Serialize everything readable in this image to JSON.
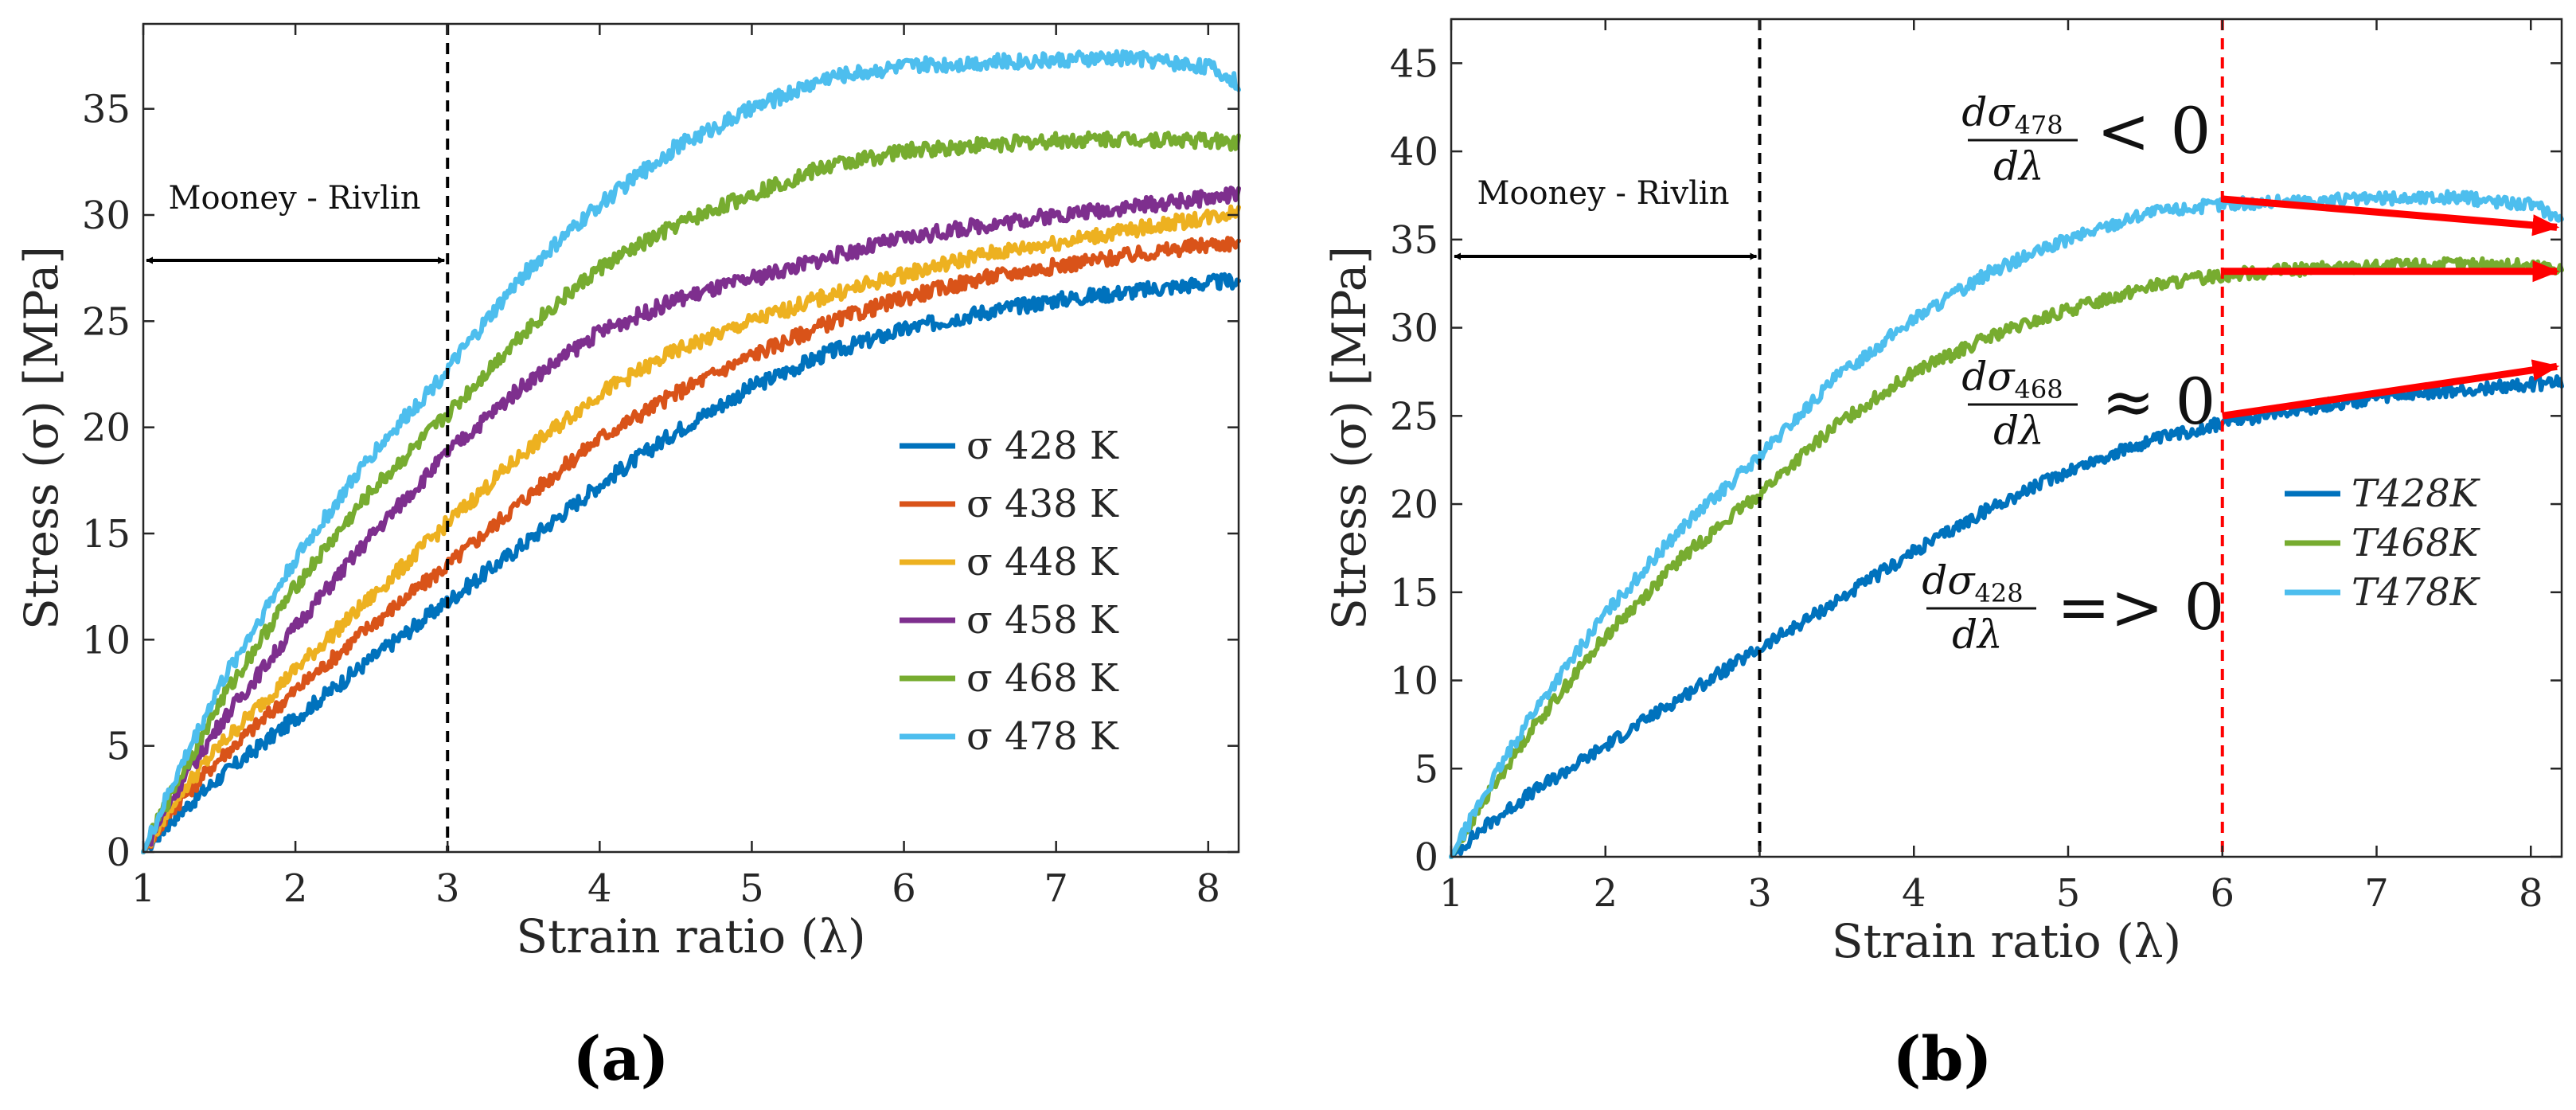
{
  "panels": {
    "a": {
      "caption": "(a)"
    },
    "b": {
      "caption": "(b)"
    }
  },
  "colors": {
    "T428": "#0072BD",
    "T438": "#D95319",
    "T448": "#EDB120",
    "T458": "#7E2F8E",
    "T468": "#77AC30",
    "T478": "#4DBEEE",
    "vline_black": "#000000",
    "vline_red": "#FF0000",
    "arrow_red": "#FF0000"
  },
  "annotations": {
    "a": {
      "region_label": "Mooney - Rivlin"
    },
    "b": {
      "region_label": "Mooney - Rivlin",
      "deriv_478": {
        "num": "dσ",
        "sub": "478",
        "den": "dλ",
        "rel": "< 0"
      },
      "deriv_468": {
        "num": "dσ",
        "sub": "468",
        "den": "dλ",
        "rel": "≈ 0"
      },
      "deriv_428": {
        "num": "dσ",
        "sub": "428",
        "den": "dλ",
        "rel": "=> 0"
      }
    }
  },
  "chart_data": [
    {
      "type": "line",
      "xlabel": "Strain ratio (λ)",
      "ylabel": "Stress (σ) [MPa]",
      "xlim": [
        1,
        8.2
      ],
      "ylim": [
        0,
        39
      ],
      "xticks": [
        "1",
        "2",
        "3",
        "4",
        "5",
        "6",
        "7",
        "8"
      ],
      "yticks": [
        "0",
        "5",
        "10",
        "15",
        "20",
        "25",
        "30",
        "35"
      ],
      "vlines": [
        {
          "x": 3,
          "style": "dashed",
          "color": "#000000"
        }
      ],
      "legend_position": "lower-right",
      "x": [
        1.0,
        1.2,
        1.5,
        2.0,
        2.5,
        3.0,
        3.5,
        4.0,
        4.5,
        5.0,
        5.5,
        6.0,
        6.5,
        7.0,
        7.5,
        8.0,
        8.2
      ],
      "series": [
        {
          "name": "σ 428 K",
          "color": "#0072BD",
          "values": [
            0,
            1.6,
            3.5,
            6.3,
            9.1,
            11.8,
            14.5,
            17.3,
            19.8,
            21.9,
            23.5,
            24.6,
            25.4,
            26.0,
            26.4,
            26.8,
            26.9
          ]
        },
        {
          "name": "σ 438 K",
          "color": "#D95319",
          "values": [
            0,
            2.1,
            4.4,
            7.6,
            10.7,
            13.5,
            16.6,
            19.5,
            21.6,
            23.4,
            24.9,
            26.1,
            27.0,
            27.6,
            28.1,
            28.6,
            28.7
          ]
        },
        {
          "name": "σ 448 K",
          "color": "#EDB120",
          "values": [
            0,
            2.4,
            5.0,
            8.6,
            12.0,
            15.5,
            18.8,
            21.6,
            23.6,
            25.0,
            26.2,
            27.2,
            28.1,
            28.7,
            29.3,
            29.9,
            30.2
          ]
        },
        {
          "name": "σ 458 K",
          "color": "#7E2F8E",
          "values": [
            0,
            2.7,
            6.0,
            10.6,
            14.9,
            18.8,
            22.0,
            24.5,
            26.0,
            27.0,
            28.0,
            28.9,
            29.5,
            30.0,
            30.4,
            30.8,
            31.0
          ]
        },
        {
          "name": "σ 468 K",
          "color": "#77AC30",
          "values": [
            0,
            3.0,
            7.0,
            12.5,
            17.0,
            20.6,
            24.5,
            27.5,
            29.5,
            31.0,
            32.3,
            33.0,
            33.3,
            33.5,
            33.6,
            33.5,
            33.4
          ]
        },
        {
          "name": "σ 478 K",
          "color": "#4DBEEE",
          "values": [
            0,
            3.3,
            7.8,
            13.8,
            18.7,
            22.7,
            27.2,
            30.5,
            33.2,
            35.0,
            36.5,
            37.0,
            37.2,
            37.3,
            37.4,
            37.0,
            36.2
          ]
        }
      ]
    },
    {
      "type": "line",
      "xlabel": "Strain ratio (λ)",
      "ylabel": "Stress (σ) [MPa]",
      "xlim": [
        1,
        8.2
      ],
      "ylim": [
        0,
        47.5
      ],
      "xticks": [
        "1",
        "2",
        "3",
        "4",
        "5",
        "6",
        "7",
        "8"
      ],
      "yticks": [
        "0",
        "5",
        "10",
        "15",
        "20",
        "25",
        "30",
        "35",
        "40",
        "45"
      ],
      "vlines": [
        {
          "x": 3,
          "style": "dashed",
          "color": "#000000"
        },
        {
          "x": 6,
          "style": "dashed",
          "color": "#FF0000"
        }
      ],
      "legend_position": "lower-right",
      "x": [
        1.0,
        1.2,
        1.5,
        2.0,
        2.5,
        3.0,
        3.5,
        4.0,
        4.5,
        5.0,
        5.5,
        6.0,
        6.5,
        7.0,
        7.5,
        8.0,
        8.2
      ],
      "series": [
        {
          "name": "T428K",
          "color": "#0072BD",
          "values": [
            0,
            1.6,
            3.5,
            6.3,
            9.1,
            11.8,
            14.5,
            17.3,
            19.8,
            21.9,
            23.5,
            24.6,
            25.4,
            26.0,
            26.4,
            26.8,
            26.9
          ]
        },
        {
          "name": "T468K",
          "color": "#77AC30",
          "values": [
            0,
            3.0,
            7.0,
            12.5,
            17.0,
            20.6,
            24.5,
            27.5,
            29.5,
            31.0,
            32.3,
            33.0,
            33.3,
            33.5,
            33.6,
            33.5,
            33.4
          ]
        },
        {
          "name": "T478K",
          "color": "#4DBEEE",
          "values": [
            0,
            3.3,
            7.8,
            13.8,
            18.7,
            22.7,
            27.2,
            30.5,
            33.2,
            35.0,
            36.5,
            37.0,
            37.2,
            37.3,
            37.4,
            37.0,
            36.2
          ]
        }
      ],
      "trend_arrows": [
        {
          "from": [
            6,
            37.3
          ],
          "to": [
            8.2,
            35.7
          ]
        },
        {
          "from": [
            6,
            33.2
          ],
          "to": [
            8.2,
            33.2
          ]
        },
        {
          "from": [
            6,
            25.0
          ],
          "to": [
            8.2,
            27.8
          ]
        }
      ]
    }
  ]
}
